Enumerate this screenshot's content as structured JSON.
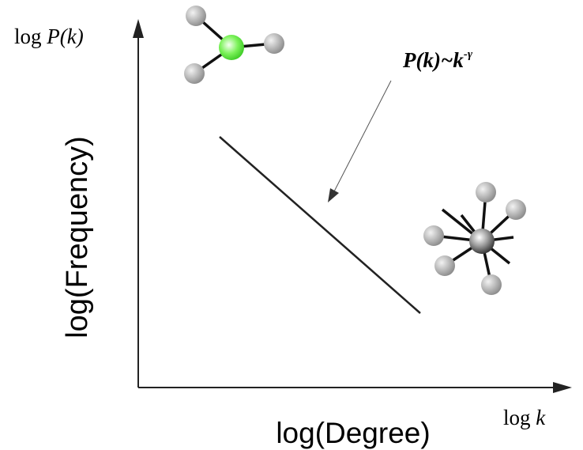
{
  "axes": {
    "y": {
      "prefix": "log",
      "variable": "P(k)",
      "label": "log(Frequency)"
    },
    "x": {
      "prefix": "log",
      "variable": "k",
      "label": "log(Degree)"
    }
  },
  "annotation": {
    "base": "P(k)~k",
    "exponent": "-γ"
  }
}
